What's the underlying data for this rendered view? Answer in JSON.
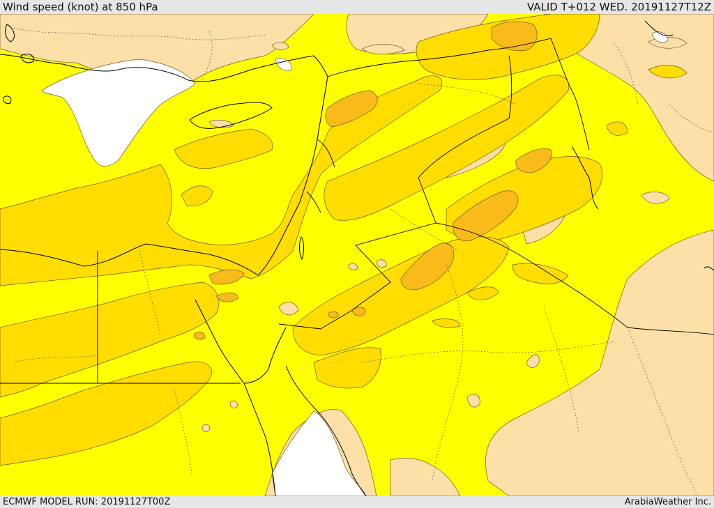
{
  "header": {
    "title": "Wind speed (knot) at 850 hPa",
    "valid": "VALID T+012 WED. 20191127T12Z"
  },
  "footer": {
    "model_run": "ECMWF MODEL RUN: 20191127T00Z",
    "credit": "ArabiaWeather Inc."
  },
  "colors": {
    "calm": "#ffffff",
    "light": "#fde0a8",
    "moderate": "#ffff00",
    "fresh": "#ffdd00",
    "strong": "#f9bb1a"
  }
}
